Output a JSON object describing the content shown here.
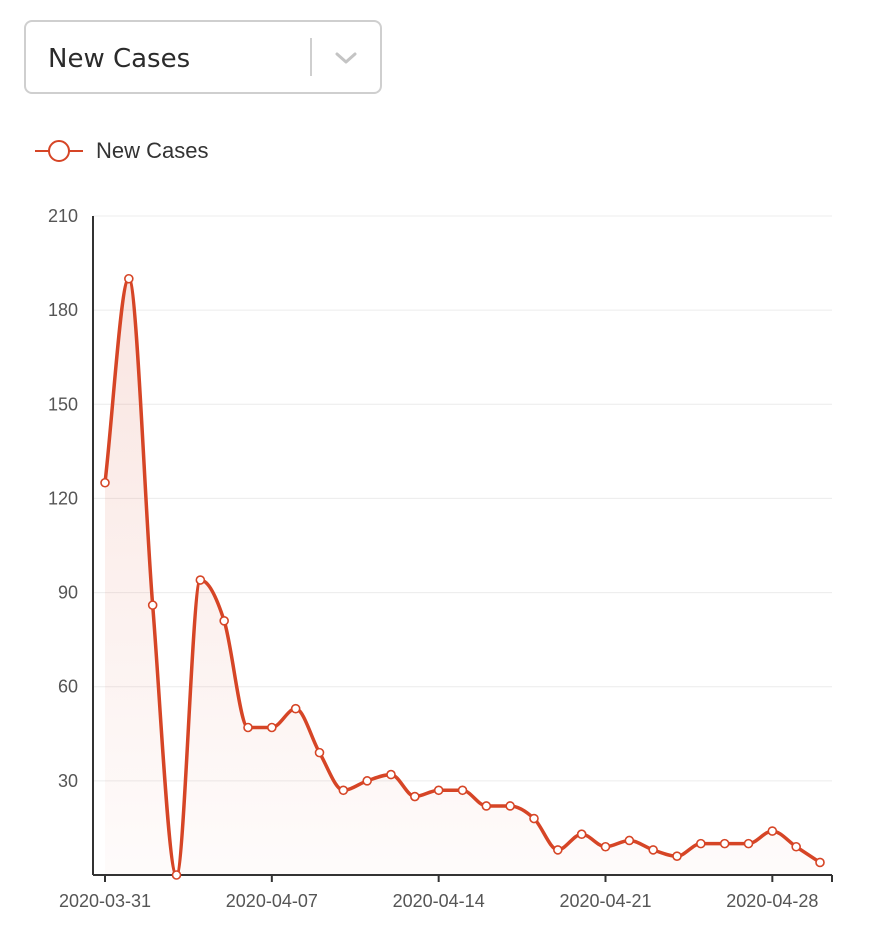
{
  "selector": {
    "value": "New Cases",
    "icon": "chevron-down-icon"
  },
  "legend": {
    "label": "New Cases",
    "icon": "line-circle-marker-icon"
  },
  "colors": {
    "series": "#d64526",
    "area_top": "#d64526",
    "grid": "#ececec",
    "axis": "#333333",
    "marker_fill": "#ffffff"
  },
  "chart_data": {
    "type": "area",
    "smooth": true,
    "title": "",
    "xlabel": "",
    "ylabel": "",
    "ylim": [
      0,
      210
    ],
    "yticks": [
      30,
      60,
      90,
      120,
      150,
      180,
      210
    ],
    "grid": true,
    "legend_position": "top-left",
    "x": [
      "2020-03-31",
      "2020-04-01",
      "2020-04-02",
      "2020-04-03",
      "2020-04-04",
      "2020-04-05",
      "2020-04-06",
      "2020-04-07",
      "2020-04-08",
      "2020-04-09",
      "2020-04-10",
      "2020-04-11",
      "2020-04-12",
      "2020-04-13",
      "2020-04-14",
      "2020-04-15",
      "2020-04-16",
      "2020-04-17",
      "2020-04-18",
      "2020-04-19",
      "2020-04-20",
      "2020-04-21",
      "2020-04-22",
      "2020-04-23",
      "2020-04-24",
      "2020-04-25",
      "2020-04-26",
      "2020-04-27",
      "2020-04-28",
      "2020-04-29",
      "2020-04-30"
    ],
    "xticks": [
      "2020-03-31",
      "2020-04-07",
      "2020-04-14",
      "2020-04-21",
      "2020-04-28"
    ],
    "series": [
      {
        "name": "New Cases",
        "values": [
          125,
          190,
          86,
          0,
          94,
          81,
          47,
          47,
          53,
          39,
          27,
          30,
          32,
          25,
          27,
          27,
          22,
          22,
          18,
          8,
          13,
          9,
          11,
          8,
          6,
          10,
          10,
          10,
          14,
          9,
          4
        ]
      }
    ]
  }
}
